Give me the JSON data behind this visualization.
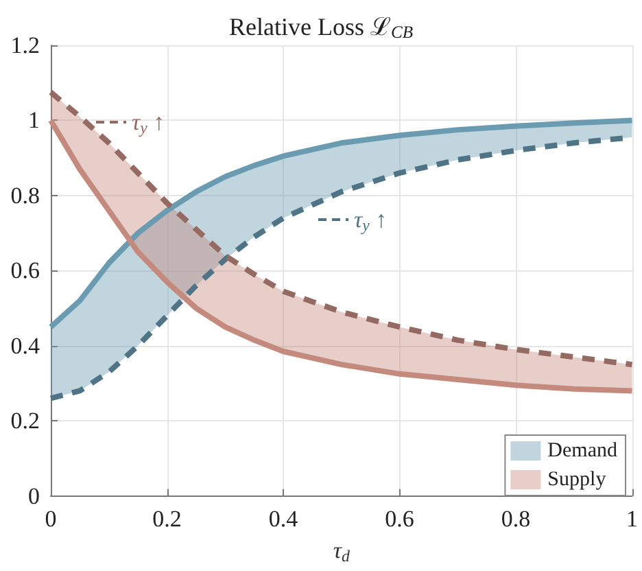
{
  "chart_data": {
    "type": "line",
    "title": "Relative Loss ℒ$_{CB}$",
    "xlabel": "τ$_{d}$",
    "x": [
      0,
      0.05,
      0.1,
      0.15,
      0.2,
      0.25,
      0.3,
      0.35,
      0.4,
      0.5,
      0.6,
      0.7,
      0.8,
      0.9,
      1.0
    ],
    "xlim": [
      0,
      1
    ],
    "xticks": [
      0,
      0.2,
      0.4,
      0.6,
      0.8,
      1
    ],
    "ylim": [
      0,
      1.2
    ],
    "yticks": [
      0,
      0.2,
      0.4,
      0.6,
      0.8,
      1,
      1.2
    ],
    "grid": true,
    "legend": "bottom right",
    "marker": "none",
    "series": [
      {
        "name": "Demand",
        "color": "#6b9bb1",
        "line_style": "solid",
        "values": [
          0.45,
          0.52,
          0.62,
          0.7,
          0.76,
          0.81,
          0.85,
          0.88,
          0.905,
          0.94,
          0.96,
          0.975,
          0.985,
          0.993,
          1.0
        ],
        "lower": [
          0.26,
          0.28,
          0.33,
          0.4,
          0.48,
          0.56,
          0.63,
          0.69,
          0.74,
          0.81,
          0.86,
          0.895,
          0.92,
          0.94,
          0.955
        ],
        "upper": [
          0.45,
          0.52,
          0.62,
          0.7,
          0.76,
          0.81,
          0.85,
          0.88,
          0.905,
          0.94,
          0.96,
          0.975,
          0.985,
          0.993,
          1.0
        ]
      },
      {
        "color": "#4f7485",
        "line_style": "dashed",
        "values": [
          0.26,
          0.28,
          0.33,
          0.4,
          0.48,
          0.56,
          0.63,
          0.69,
          0.74,
          0.81,
          0.86,
          0.895,
          0.92,
          0.94,
          0.955
        ]
      },
      {
        "name": "Supply",
        "color": "#c58a7e",
        "line_style": "solid",
        "values": [
          1.0,
          0.87,
          0.76,
          0.65,
          0.57,
          0.5,
          0.45,
          0.415,
          0.385,
          0.35,
          0.325,
          0.31,
          0.295,
          0.285,
          0.28
        ],
        "lower": [
          1.0,
          0.87,
          0.76,
          0.65,
          0.57,
          0.5,
          0.45,
          0.415,
          0.385,
          0.35,
          0.325,
          0.31,
          0.295,
          0.285,
          0.28
        ],
        "upper": [
          1.075,
          1.01,
          0.94,
          0.86,
          0.78,
          0.71,
          0.64,
          0.59,
          0.545,
          0.49,
          0.45,
          0.415,
          0.39,
          0.37,
          0.35
        ]
      },
      {
        "color": "#946a62",
        "line_style": "dashed",
        "values": [
          1.075,
          1.01,
          0.94,
          0.86,
          0.78,
          0.71,
          0.64,
          0.59,
          0.545,
          0.49,
          0.45,
          0.415,
          0.39,
          0.37,
          0.35
        ]
      }
    ],
    "annotations": [
      "τ$_{y}$ ↑",
      "τ$_{y}$ ↑"
    ]
  }
}
